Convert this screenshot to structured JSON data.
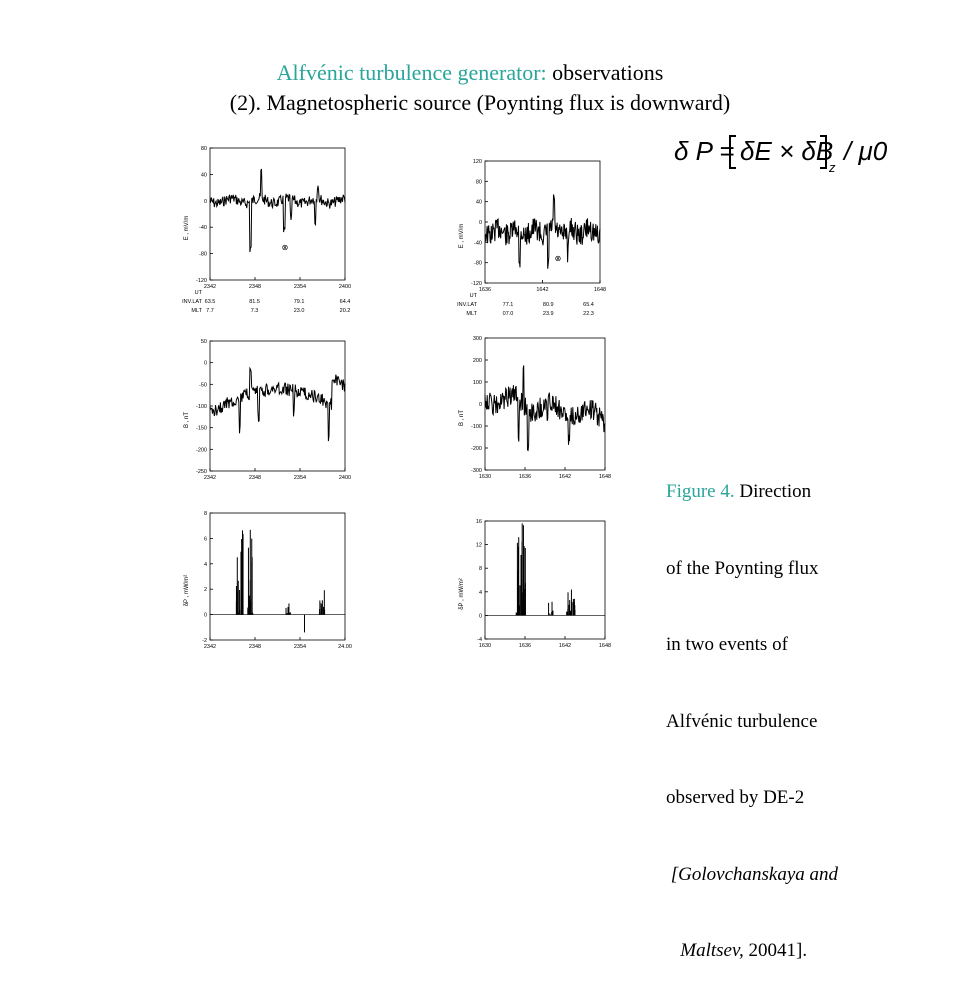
{
  "slide": {
    "title_part1": "Alfvénic turbulence generator:",
    "title_part2": " observations",
    "subtitle": "(2). Magnetospheric source (Poynting flux  is downward)",
    "accent_color": "#2aa59a"
  },
  "formula": {
    "text": "δP = [δE × δB]z / μ0",
    "lhs": "δ P =",
    "bracket": "δE × δB",
    "subscript": "z",
    "rhs": "/ μ0"
  },
  "caption": {
    "figure_label": "Figure 4.",
    "line1": " Direction",
    "line2": "of the Poynting flux",
    "line3": "in two events of",
    "line4": "Alfvénic turbulence",
    "line5": "observed by DE-2",
    "line6": " [Golovchanskaya and",
    "line7_italic": "   Maltsev,",
    "line7_rest": " 20041]."
  },
  "panels": {
    "left_e": {
      "ylabel": "E , mV/m",
      "yticks": [
        "80",
        "40",
        "0",
        "-40",
        "-80",
        "-120"
      ],
      "xticks": [
        "2342",
        "2348",
        "2354",
        "2400"
      ],
      "ephem": {
        "labels": [
          "UT",
          "INV.LAT",
          "MLT"
        ],
        "rows": [
          [
            "63.5",
            "81.5",
            "79.1",
            "64.4"
          ],
          [
            "7.7",
            "7.3",
            "23.0",
            "20.2"
          ]
        ]
      },
      "marker": "⊗"
    },
    "right_e": {
      "ylabel": "E , mV/m",
      "yticks": [
        "120",
        "80",
        "40",
        "0",
        "-40",
        "-80",
        "-120"
      ],
      "xticks": [
        "1636",
        "1642",
        "1648"
      ],
      "ephem": {
        "labels": [
          "UT",
          "INV.LAT",
          "MLT"
        ],
        "rows": [
          [
            "77.1",
            "80.9",
            "65.4"
          ],
          [
            "07.0",
            "23.9",
            "22.3"
          ]
        ]
      },
      "marker": "⊗"
    },
    "left_b": {
      "ylabel": "B , nT",
      "yticks": [
        "50",
        "0",
        "-50",
        "-100",
        "-150",
        "-200",
        "-250"
      ],
      "xticks": [
        "2342",
        "2348",
        "2354",
        "2400"
      ]
    },
    "right_b": {
      "ylabel": "B , nT",
      "yticks": [
        "300",
        "200",
        "100",
        "0",
        "-100",
        "-200",
        "-300"
      ],
      "xticks": [
        "1630",
        "1636",
        "1642",
        "1648"
      ]
    },
    "left_p": {
      "ylabel": "δP , mW/m²",
      "yticks": [
        "8",
        "6",
        "4",
        "2",
        "0",
        "-2"
      ],
      "xticks": [
        "2342",
        "2348",
        "2354",
        "24.00"
      ]
    },
    "right_p": {
      "ylabel": "δP , mW/m²",
      "yticks": [
        "16",
        "12",
        "8",
        "4",
        "0",
        "-4"
      ],
      "xticks": [
        "1630",
        "1636",
        "1642",
        "1648"
      ]
    }
  }
}
